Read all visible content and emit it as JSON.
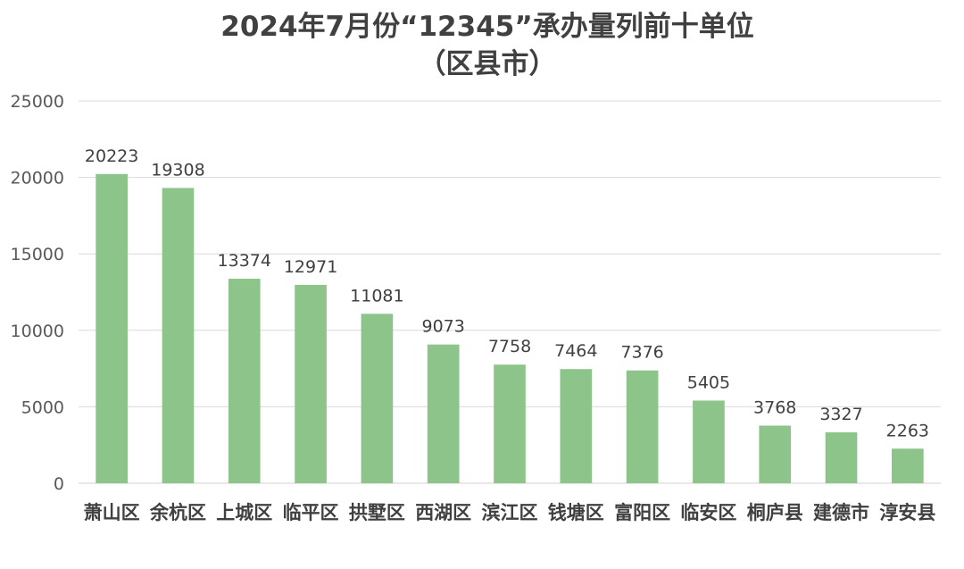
{
  "chart_data": {
    "type": "bar",
    "title": "2024年7月份“12345”承办量列前十单位",
    "subtitle": "（区县市）",
    "categories": [
      "萧山区",
      "余杭区",
      "上城区",
      "临平区",
      "拱墅区",
      "西湖区",
      "滨江区",
      "钱塘区",
      "富阳区",
      "临安区",
      "桐庐县",
      "建德市",
      "淳安县"
    ],
    "values": [
      20223,
      19308,
      13374,
      12971,
      11081,
      9073,
      7758,
      7464,
      7376,
      5405,
      3768,
      3327,
      2263
    ],
    "ylim": [
      0,
      25000
    ],
    "yticks": [
      0,
      5000,
      10000,
      15000,
      20000,
      25000
    ],
    "xlabel": "",
    "ylabel": "",
    "grid": true,
    "legend": "none",
    "data_labels": true,
    "colors": {
      "bar": "#8dc48a",
      "grid": "#d9d9d9",
      "text": "#404040"
    }
  }
}
